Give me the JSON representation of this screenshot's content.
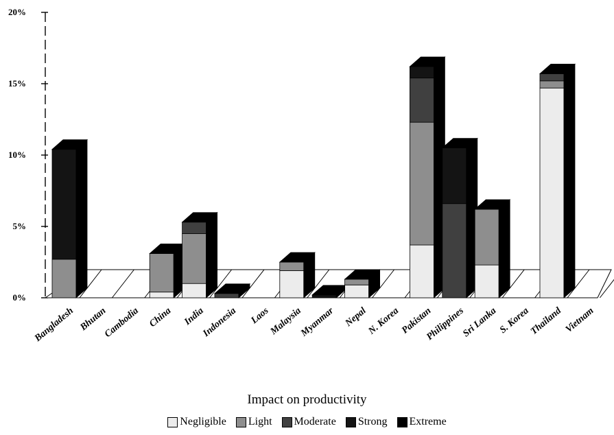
{
  "chart_data": {
    "type": "bar",
    "stacked": true,
    "three_d": true,
    "title": "",
    "xlabel": "",
    "ylabel": "",
    "ylim": [
      0,
      20
    ],
    "y_ticks": [
      "0%",
      "5%",
      "10%",
      "15%",
      "20%"
    ],
    "categories": [
      "Bangladesh",
      "Bhutan",
      "Cambodia",
      "China",
      "India",
      "Indonesia",
      "Laos",
      "Malaysia",
      "Myanmar",
      "Nepal",
      "N. Korea",
      "Pakistan",
      "Philippines",
      "Sri Lanka",
      "S. Korea",
      "Thailand",
      "Vietnam"
    ],
    "series": [
      {
        "name": "Negligible",
        "color": "#ececec",
        "values": [
          0,
          0,
          0,
          0.4,
          1.0,
          0,
          0,
          1.9,
          0,
          0.9,
          0,
          3.7,
          0,
          2.3,
          0,
          14.7,
          0
        ]
      },
      {
        "name": "Light",
        "color": "#8e8e8e",
        "values": [
          2.7,
          0,
          0,
          2.7,
          3.5,
          0,
          0,
          0.6,
          0,
          0.4,
          0,
          8.6,
          0,
          3.9,
          0,
          0.5,
          0
        ]
      },
      {
        "name": "Moderate",
        "color": "#404040",
        "values": [
          0,
          0,
          0,
          0,
          0.8,
          0.3,
          0,
          0,
          0,
          0,
          0,
          3.1,
          6.6,
          0,
          0,
          0.5,
          0
        ]
      },
      {
        "name": "Strong",
        "color": "#141414",
        "values": [
          7.7,
          0,
          0,
          0,
          0,
          0,
          0,
          0,
          0.2,
          0,
          0,
          0.8,
          3.9,
          0,
          0,
          0,
          0
        ]
      },
      {
        "name": "Extreme",
        "color": "#000000",
        "values": [
          0,
          0,
          0,
          0,
          0,
          0,
          0,
          0,
          0,
          0,
          0,
          0,
          0,
          0,
          0,
          0,
          0
        ]
      }
    ],
    "legend_title": "Impact on productivity",
    "legend_position": "bottom",
    "grid": false
  }
}
